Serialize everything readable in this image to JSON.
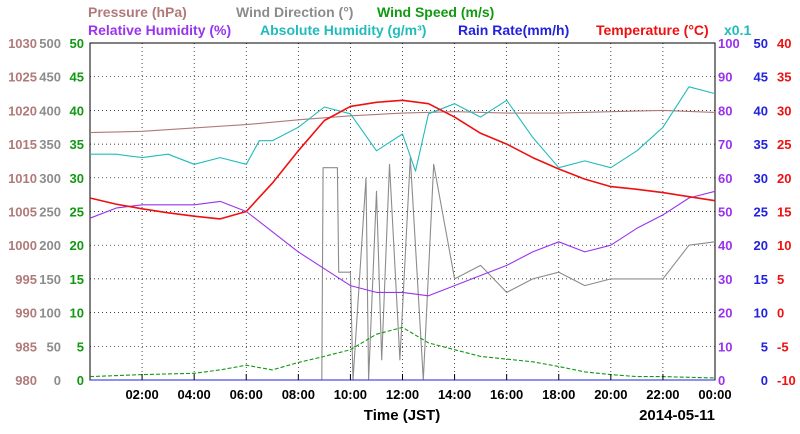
{
  "chart_data": {
    "type": "line",
    "date_label": "2014-05-11",
    "xlabel": "Time (JST)",
    "x_ticks": [
      "02:00",
      "04:00",
      "06:00",
      "08:00",
      "10:00",
      "12:00",
      "14:00",
      "16:00",
      "18:00",
      "20:00",
      "22:00",
      "00:00"
    ],
    "x_tick_hours": [
      2,
      4,
      6,
      8,
      10,
      12,
      14,
      16,
      18,
      20,
      22,
      24
    ],
    "x_range_hours": [
      0,
      24
    ],
    "grid": true,
    "colors": {
      "pressure": "#b07a7a",
      "wind_direction": "#8c8c8c",
      "wind_speed": "#119911",
      "relative_humidity": "#9933ee",
      "absolute_humidity": "#22bbbb",
      "rain_rate": "#2222dd",
      "temperature": "#ee1111"
    },
    "legend_top": [
      {
        "key": "pressure",
        "text": "Pressure (hPa)"
      },
      {
        "key": "wind_direction",
        "text": "Wind Direction (°)"
      },
      {
        "key": "wind_speed",
        "text": "Wind Speed (m/s)"
      }
    ],
    "legend_bottom": [
      {
        "key": "relative_humidity",
        "text": "Relative Humidity (%)"
      },
      {
        "key": "absolute_humidity",
        "text": "Absolute Humidity (g/m³)"
      },
      {
        "key": "rain_rate",
        "text": "Rain Rate(mm/h)"
      },
      {
        "key": "temperature",
        "text": "Temperature (°C)"
      },
      {
        "key": "absolute_humidity",
        "text": "x0.1"
      }
    ],
    "axes": {
      "pressure": {
        "ticks": [
          "1030",
          "1025",
          "1020",
          "1015",
          "1010",
          "1005",
          "1000",
          "995",
          "990",
          "985",
          "980"
        ],
        "range": [
          980,
          1030
        ]
      },
      "wind_direction": {
        "ticks": [
          "500",
          "450",
          "400",
          "350",
          "300",
          "250",
          "200",
          "150",
          "100",
          "50",
          "0"
        ],
        "range": [
          0,
          500
        ]
      },
      "wind_speed": {
        "ticks": [
          "50",
          "45",
          "40",
          "35",
          "30",
          "25",
          "20",
          "15",
          "10",
          "5",
          "0"
        ],
        "range": [
          0,
          50
        ]
      },
      "relative_humidity": {
        "ticks": [
          "100",
          "90",
          "80",
          "70",
          "60",
          "50",
          "40",
          "30",
          "20",
          "10",
          "0"
        ],
        "range": [
          0,
          100
        ]
      },
      "rain_rate": {
        "ticks": [
          "50",
          "45",
          "40",
          "35",
          "30",
          "25",
          "20",
          "15",
          "10",
          "5",
          "0"
        ],
        "range": [
          0,
          50
        ]
      },
      "temperature": {
        "ticks": [
          "40",
          "35",
          "30",
          "25",
          "20",
          "15",
          "10",
          "5",
          "0",
          "-5",
          "-10"
        ],
        "range": [
          -10,
          40
        ]
      }
    },
    "series": [
      {
        "key": "pressure",
        "axis": "pressure",
        "x": [
          0,
          2,
          4,
          6,
          8,
          10,
          12,
          14,
          16,
          18,
          20,
          22,
          24
        ],
        "y": [
          1016.7,
          1016.9,
          1017.4,
          1017.9,
          1018.6,
          1019.2,
          1019.6,
          1019.8,
          1019.6,
          1019.6,
          1019.8,
          1020.0,
          1019.7
        ]
      },
      {
        "key": "temperature",
        "axis": "temperature",
        "x": [
          0,
          1,
          2,
          3,
          4,
          5,
          6,
          7,
          8,
          9,
          10,
          11,
          12,
          13,
          14,
          15,
          16,
          17,
          18,
          19,
          20,
          21,
          22,
          23,
          24
        ],
        "y": [
          17.0,
          16.1,
          15.4,
          14.8,
          14.3,
          13.9,
          15.0,
          19.2,
          24.0,
          28.5,
          30.6,
          31.2,
          31.5,
          31.0,
          29.0,
          26.6,
          25.0,
          23.0,
          21.3,
          19.8,
          18.7,
          18.3,
          17.8,
          17.2,
          16.6
        ]
      },
      {
        "key": "relative_humidity",
        "axis": "relative_humidity",
        "x": [
          0,
          1,
          2,
          3,
          4,
          5,
          6,
          7,
          8,
          9,
          10,
          11,
          12,
          13,
          14,
          15,
          16,
          17,
          18,
          19,
          20,
          21,
          22,
          23,
          24
        ],
        "y": [
          48,
          51,
          52,
          52,
          52,
          53,
          50,
          44,
          38,
          33,
          28,
          26,
          26,
          25,
          28,
          31,
          34,
          38,
          41,
          38,
          40,
          45,
          49,
          54,
          56
        ]
      },
      {
        "key": "absolute_humidity",
        "axis": "relative_humidity",
        "x": [
          0,
          1,
          2,
          3,
          4,
          5,
          6,
          6.5,
          7,
          8,
          9,
          10,
          11,
          12,
          12.5,
          13,
          14,
          15,
          16,
          17,
          18,
          19,
          20,
          21,
          22,
          23,
          24
        ],
        "y": [
          67,
          67,
          66,
          67,
          64,
          66,
          64,
          71,
          71,
          75,
          81,
          79,
          68,
          73,
          62,
          79,
          82,
          78,
          83,
          72,
          63,
          65,
          63,
          68,
          75,
          87,
          85
        ]
      },
      {
        "key": "wind_direction",
        "axis": "wind_direction",
        "x": [
          0,
          8.9,
          8.95,
          9.5,
          9.55,
          10,
          10.1,
          10.6,
          10.7,
          11.0,
          11.2,
          11.5,
          11.9,
          12.3,
          12.8,
          13.2,
          14,
          15,
          16,
          17,
          18,
          19,
          20,
          21,
          22,
          23,
          24
        ],
        "y": [
          0,
          0,
          315,
          315,
          160,
          160,
          0,
          300,
          0,
          280,
          30,
          320,
          30,
          330,
          0,
          320,
          150,
          170,
          130,
          150,
          160,
          140,
          150,
          150,
          150,
          200,
          205
        ]
      },
      {
        "key": "wind_speed",
        "axis": "wind_speed",
        "x": [
          0,
          2,
          4,
          5,
          6,
          7,
          8,
          9,
          10,
          11,
          12,
          13,
          14,
          15,
          16,
          17,
          18,
          19,
          20,
          21,
          22,
          23,
          24
        ],
        "y": [
          0.5,
          0.8,
          1,
          1.5,
          2.2,
          1.5,
          2.6,
          3.5,
          4.5,
          6.8,
          7.8,
          5.5,
          4.5,
          3.5,
          3.1,
          2.7,
          2.0,
          1.2,
          0.8,
          0.5,
          0.5,
          0.4,
          0.3
        ]
      },
      {
        "key": "rain_rate",
        "axis": "rain_rate",
        "x": [
          0,
          24
        ],
        "y": [
          0,
          0
        ]
      }
    ]
  }
}
